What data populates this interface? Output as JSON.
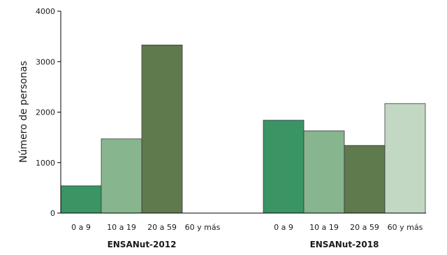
{
  "chart_data": {
    "type": "bar",
    "ylabel": "Número de personas",
    "ylim": [
      0,
      4000
    ],
    "yticks": [
      "0",
      "1000",
      "2000",
      "3000",
      "4000"
    ],
    "grid": false,
    "groups": [
      {
        "label": "ENSANut-2012",
        "categories": [
          "0 a 9",
          "10 a 19",
          "20 a 59",
          "60 y más"
        ],
        "values": [
          540,
          1470,
          3330,
          0
        ]
      },
      {
        "label": "ENSANut-2018",
        "categories": [
          "0 a 9",
          "10 a 19",
          "20 a 59",
          "60 y más"
        ],
        "values": [
          1840,
          1630,
          1340,
          2170
        ]
      }
    ],
    "category_colors": [
      "#3a9464",
      "#86b58e",
      "#5f7a4c",
      "#c2d8c3"
    ]
  }
}
